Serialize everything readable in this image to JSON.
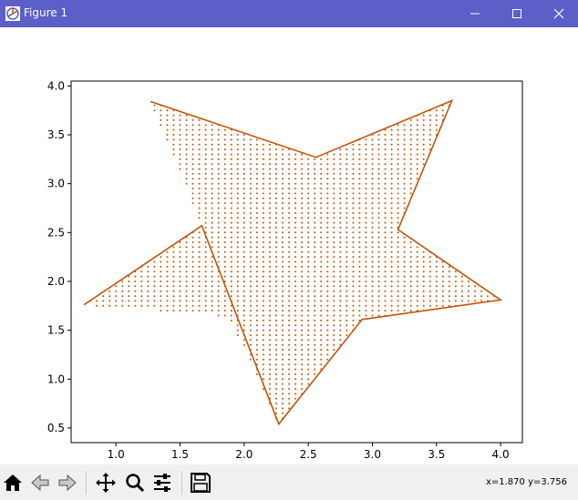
{
  "window": {
    "title": "Figure 1",
    "minimize_icon": "minimize-icon",
    "maximize_icon": "maximize-icon",
    "close_icon": "close-icon"
  },
  "toolbar": {
    "buttons": [
      {
        "name": "home-button",
        "icon": "home-icon"
      },
      {
        "name": "back-button",
        "icon": "back-arrow-icon"
      },
      {
        "name": "forward-button",
        "icon": "forward-arrow-icon"
      },
      {
        "name": "pan-button",
        "icon": "move-icon"
      },
      {
        "name": "zoom-button",
        "icon": "zoom-icon"
      },
      {
        "name": "configure-subplots-button",
        "icon": "sliders-icon"
      },
      {
        "name": "save-button",
        "icon": "save-icon"
      }
    ],
    "coords": "x=1.870 y=3.756"
  },
  "chart_data": {
    "type": "scatter",
    "title": "",
    "xlabel": "",
    "ylabel": "",
    "xlim": [
      0.65,
      4.17
    ],
    "ylim": [
      0.35,
      4.05
    ],
    "grid": false,
    "xticks": [
      "1.0",
      "1.5",
      "2.0",
      "2.5",
      "3.0",
      "3.5",
      "4.0"
    ],
    "yticks": [
      "0.5",
      "1.0",
      "1.5",
      "2.0",
      "2.5",
      "3.0",
      "3.5",
      "4.0"
    ],
    "color": "#c0560a",
    "outline": {
      "x": [
        1.27,
        2.56,
        3.62,
        3.2,
        4.0,
        2.92,
        2.27,
        1.67,
        0.75,
        1.67
      ],
      "y": [
        3.84,
        3.27,
        3.85,
        2.53,
        1.81,
        1.61,
        0.54,
        2.57,
        1.76,
        2.57
      ]
    },
    "star": {
      "x": [
        1.27,
        2.56,
        3.62,
        3.2,
        4.0,
        2.92,
        2.27,
        1.88,
        0.75,
        1.67
      ],
      "y": [
        3.84,
        3.27,
        3.85,
        2.53,
        1.81,
        1.61,
        0.54,
        1.64,
        1.76,
        2.57
      ]
    },
    "grid_points": {
      "x_start": 0.8,
      "x_step": 0.05,
      "y_start": 0.6,
      "y_step": 0.05
    }
  }
}
